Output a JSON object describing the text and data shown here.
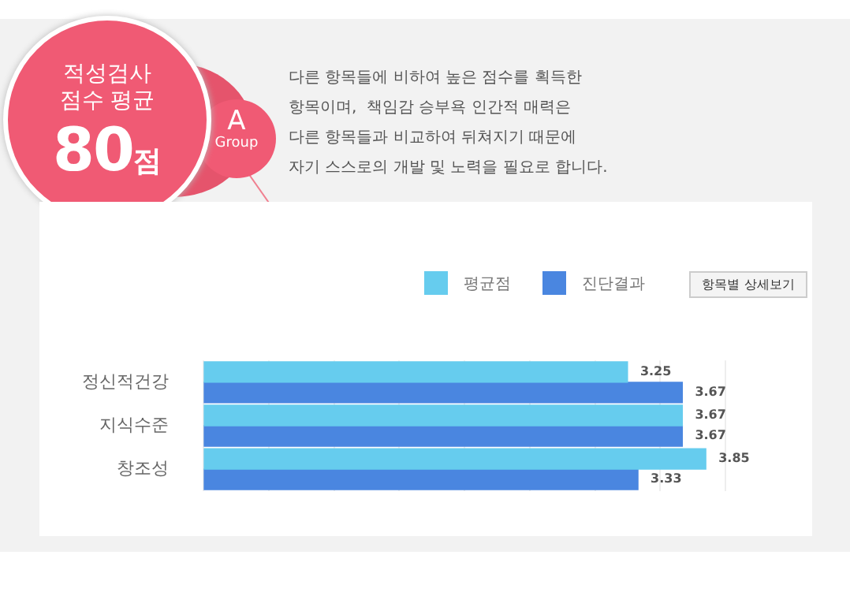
{
  "chart_data": {
    "type": "bar",
    "orientation": "horizontal",
    "title": "적성검사 점수 평균",
    "annotations": [
      "80점",
      "A",
      "Group",
      "다른 항목들에 비하여 높은 점수를 획득한",
      "항목이며,  책임감 승부욕 인간적 매력은",
      "다른 항목들과 비교하여 뒤쳐지기 때문에",
      "자기 스스로의 개발 및 노력을 필요로 합니다.",
      "항목별 상세보기"
    ],
    "categories": [
      "정신적건강",
      "지식수준",
      "창조성"
    ],
    "series": [
      {
        "name": "평균점",
        "color": "#66ccee",
        "values": [
          3.25,
          3.67,
          3.85
        ]
      },
      {
        "name": "진단결과",
        "color": "#4a86e0",
        "values": [
          3.67,
          3.67,
          3.33
        ]
      }
    ],
    "data_labels": true,
    "legend": "top right",
    "grid": "x",
    "tick_labels": "y"
  }
}
